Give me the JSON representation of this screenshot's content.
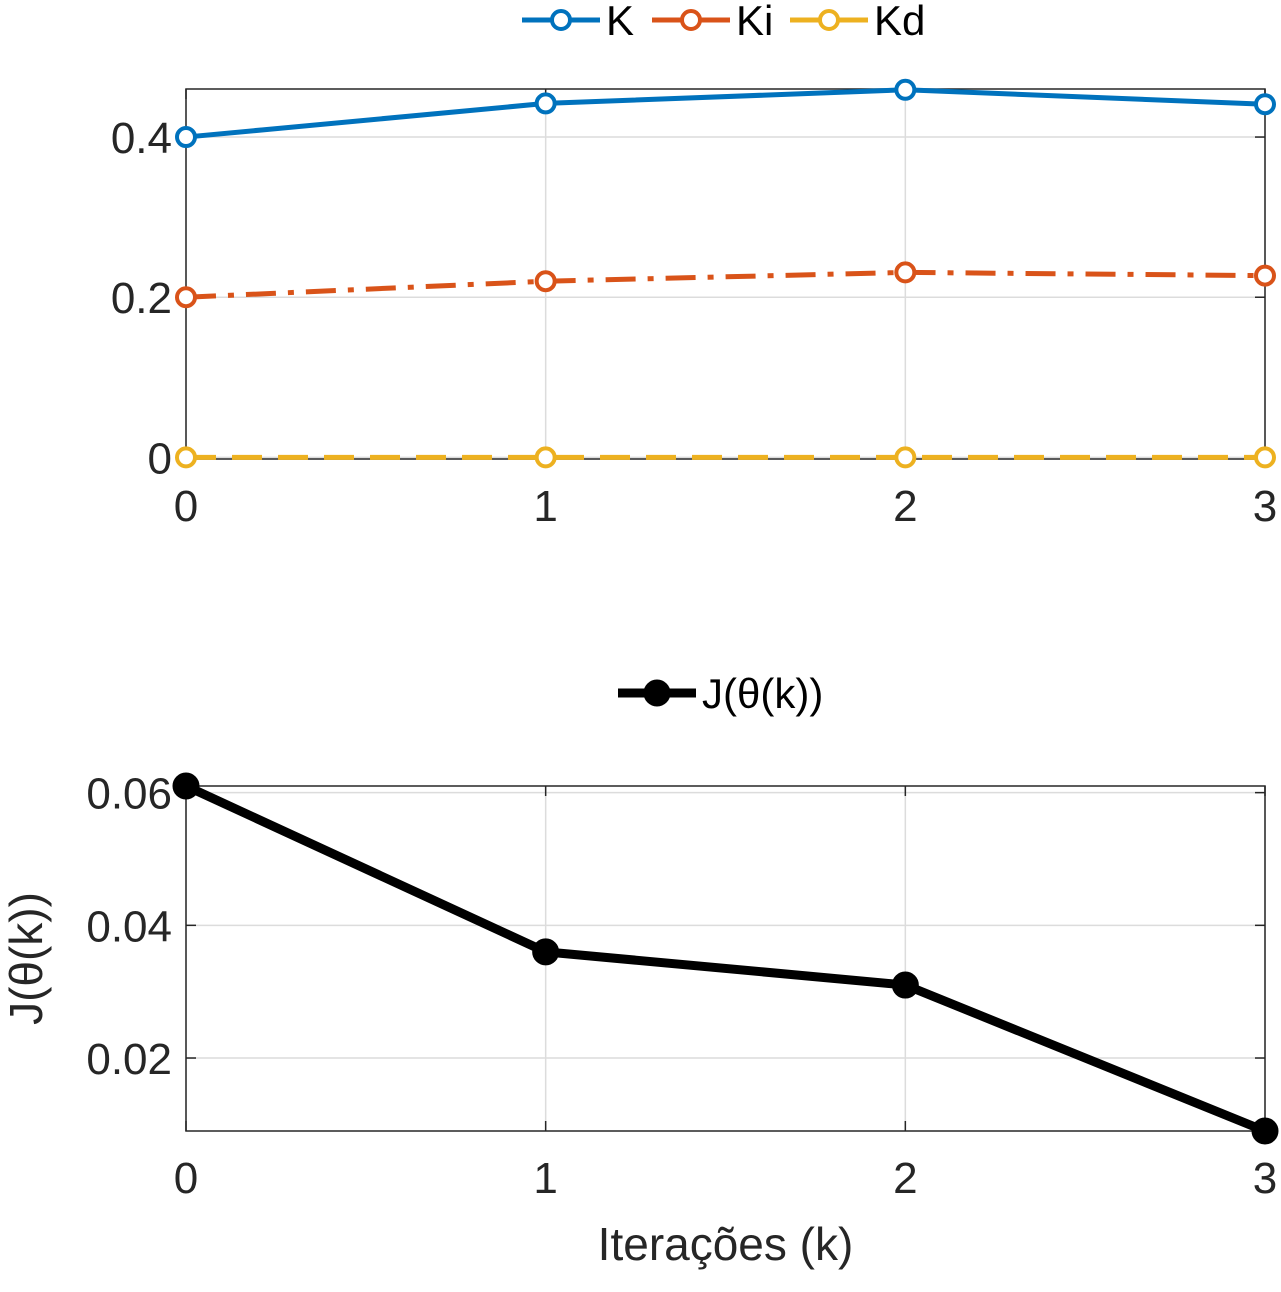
{
  "chart_data": [
    {
      "type": "line",
      "title": "",
      "xlabel": "",
      "ylabel": "",
      "x": [
        0,
        1,
        2,
        3
      ],
      "xlim": [
        0,
        3
      ],
      "ylim": [
        -0.002,
        0.46
      ],
      "xticks": [
        0,
        1,
        2,
        3
      ],
      "xtick_labels": [
        "0",
        "1",
        "2",
        "3"
      ],
      "yticks": [
        0,
        0.2,
        0.4
      ],
      "ytick_labels": [
        "0",
        "0.2",
        "0.4"
      ],
      "grid": true,
      "legend_position": "top",
      "series": [
        {
          "name": "K",
          "values": [
            0.4,
            0.442,
            0.459,
            0.441
          ],
          "color": "#0072BD",
          "line_style": "solid",
          "marker": "open-circle"
        },
        {
          "name": "Ki",
          "values": [
            0.2,
            0.22,
            0.231,
            0.227
          ],
          "color": "#D95319",
          "line_style": "dash-dot",
          "marker": "open-circle"
        },
        {
          "name": "Kd",
          "values": [
            0.0,
            0.0,
            0.0,
            0.0
          ],
          "color": "#EDB120",
          "line_style": "dashed",
          "marker": "open-circle"
        }
      ]
    },
    {
      "type": "line",
      "title": "",
      "xlabel": "Iterações (k)",
      "ylabel": "J(θ(k))",
      "x": [
        0,
        1,
        2,
        3
      ],
      "xlim": [
        0,
        3
      ],
      "ylim": [
        0.009,
        0.061
      ],
      "xticks": [
        0,
        1,
        2,
        3
      ],
      "xtick_labels": [
        "0",
        "1",
        "2",
        "3"
      ],
      "yticks": [
        0.02,
        0.04,
        0.06
      ],
      "ytick_labels": [
        "0.02",
        "0.04",
        "0.06"
      ],
      "grid": true,
      "legend_position": "top",
      "series": [
        {
          "name": "J(θ(k))",
          "values": [
            0.061,
            0.036,
            0.031,
            0.009
          ],
          "color": "#000000",
          "line_style": "solid",
          "marker": "filled-circle"
        }
      ]
    }
  ]
}
